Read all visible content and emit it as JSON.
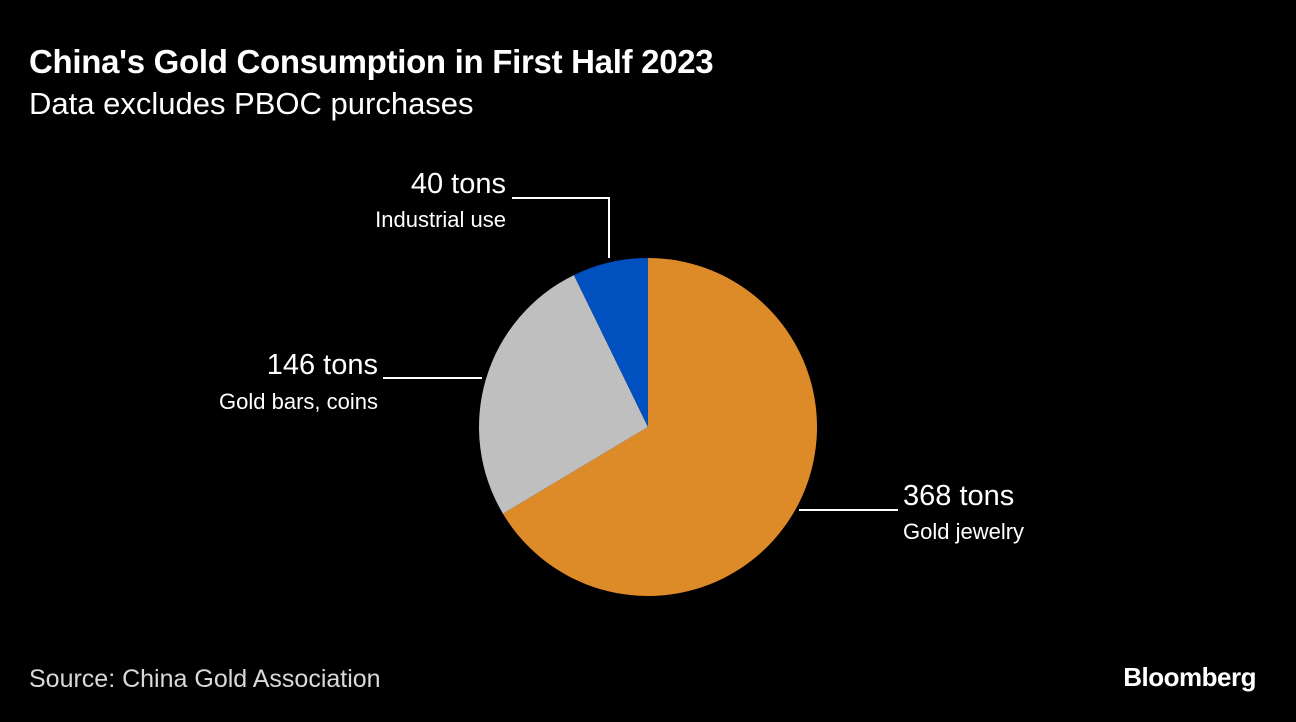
{
  "header": {
    "title": "China's Gold Consumption in First Half 2023",
    "subtitle": "Data excludes PBOC purchases"
  },
  "footer": {
    "source": "Source: China Gold Association",
    "brand": "Bloomberg"
  },
  "chart_data": {
    "type": "pie",
    "title": "China's Gold Consumption in First Half 2023",
    "subtitle": "Data excludes PBOC purchases",
    "unit": "tons",
    "start_angle": "12 o'clock",
    "direction": "clockwise",
    "slices": [
      {
        "name": "Gold jewelry",
        "value": 368,
        "label": "368 tons",
        "color": "#dd8a28"
      },
      {
        "name": "Gold bars, coins",
        "value": 146,
        "label": "146 tons",
        "color": "#bfbfbf"
      },
      {
        "name": "Industrial use",
        "value": 40,
        "label": "40 tons",
        "color": "#0050c0"
      }
    ]
  }
}
